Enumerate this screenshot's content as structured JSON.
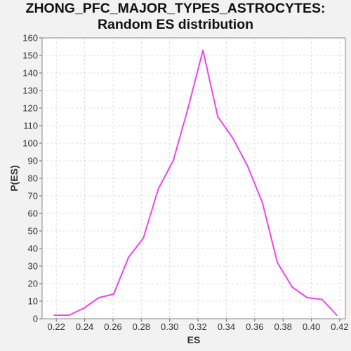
{
  "chart_data": {
    "type": "line",
    "title_lines": [
      "ZHONG_PFC_MAJOR_TYPES_ASTROCYTES:",
      "Random ES distribution"
    ],
    "xlabel": "ES",
    "ylabel": "P(ES)",
    "xlim": [
      0.21,
      0.424
    ],
    "ylim": [
      0,
      160
    ],
    "x_ticks": [
      "0.22",
      "0.24",
      "0.26",
      "0.28",
      "0.30",
      "0.32",
      "0.34",
      "0.36",
      "0.38",
      "0.40",
      "0.42"
    ],
    "y_ticks": [
      "0",
      "10",
      "20",
      "30",
      "40",
      "50",
      "60",
      "70",
      "80",
      "90",
      "100",
      "110",
      "120",
      "130",
      "140",
      "150",
      "160"
    ],
    "grid": true,
    "legend": "none",
    "series": [
      {
        "color": "#ee44ee",
        "x": [
          0.2185,
          0.229,
          0.2395,
          0.25,
          0.2605,
          0.271,
          0.2815,
          0.292,
          0.3025,
          0.313,
          0.3235,
          0.334,
          0.3445,
          0.355,
          0.3655,
          0.376,
          0.3865,
          0.397,
          0.4075,
          0.418
        ],
        "y": [
          2,
          2,
          6,
          12,
          14,
          35,
          46,
          74,
          90,
          120,
          153,
          115,
          103,
          87,
          66,
          32,
          18,
          12,
          11,
          2
        ]
      }
    ]
  }
}
